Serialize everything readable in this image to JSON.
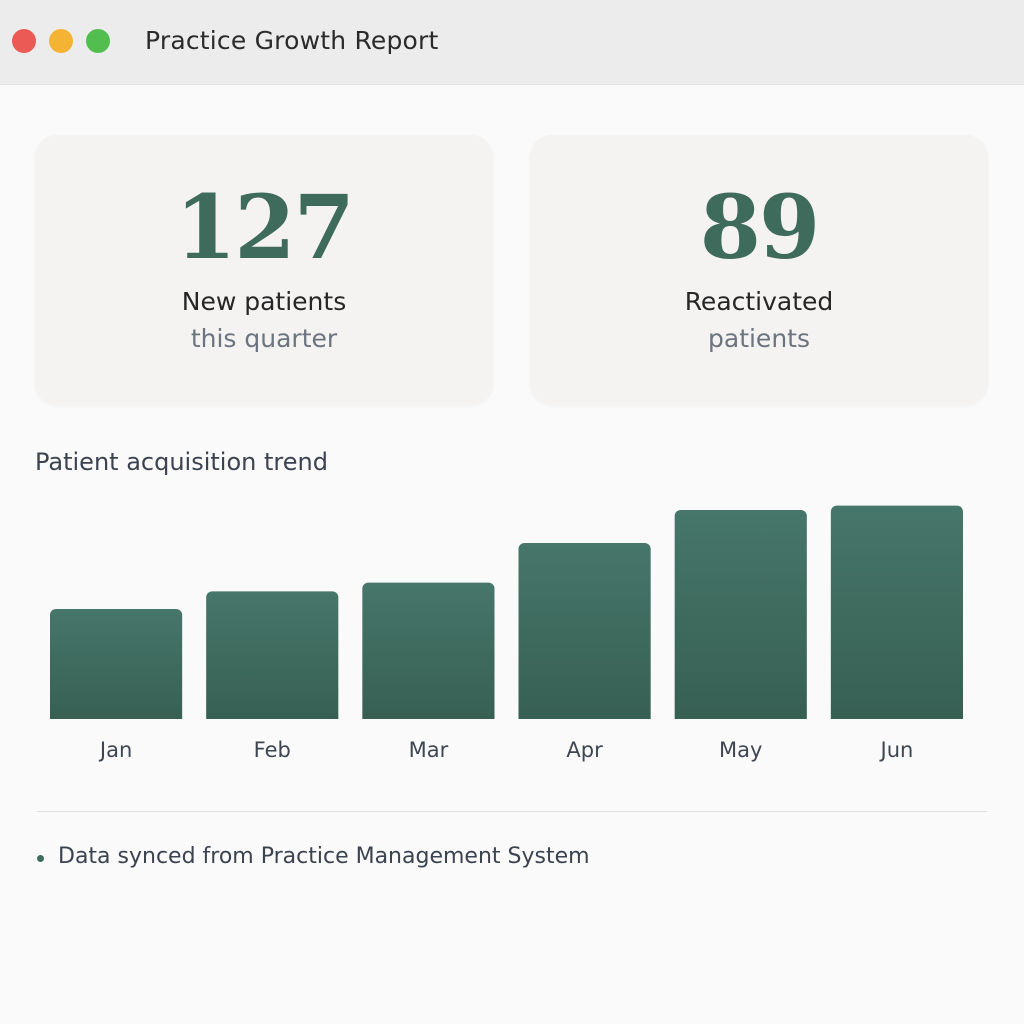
{
  "window": {
    "title": "Practice Growth Report",
    "traffic_lights": {
      "close": "#ec5a55",
      "minimize": "#f5b334",
      "zoom": "#52be4f"
    }
  },
  "theme": {
    "accent": "#3f6b5c"
  },
  "stats": [
    {
      "value": "127",
      "label": "New patients",
      "sublabel": "this quarter"
    },
    {
      "value": "89",
      "label": "Reactivated",
      "sublabel": "patients"
    }
  ],
  "chart_data": {
    "type": "bar",
    "title": "Patient acquisition trend",
    "xlabel": "",
    "ylabel": "",
    "categories": [
      "Jan",
      "Feb",
      "Mar",
      "Apr",
      "May",
      "Jun"
    ],
    "values": [
      50,
      58,
      62,
      80,
      95,
      97
    ],
    "ylim": [
      0,
      100
    ],
    "grid": false,
    "color": "#3f6b5c"
  },
  "footer": {
    "note": "Data synced from Practice Management System"
  }
}
